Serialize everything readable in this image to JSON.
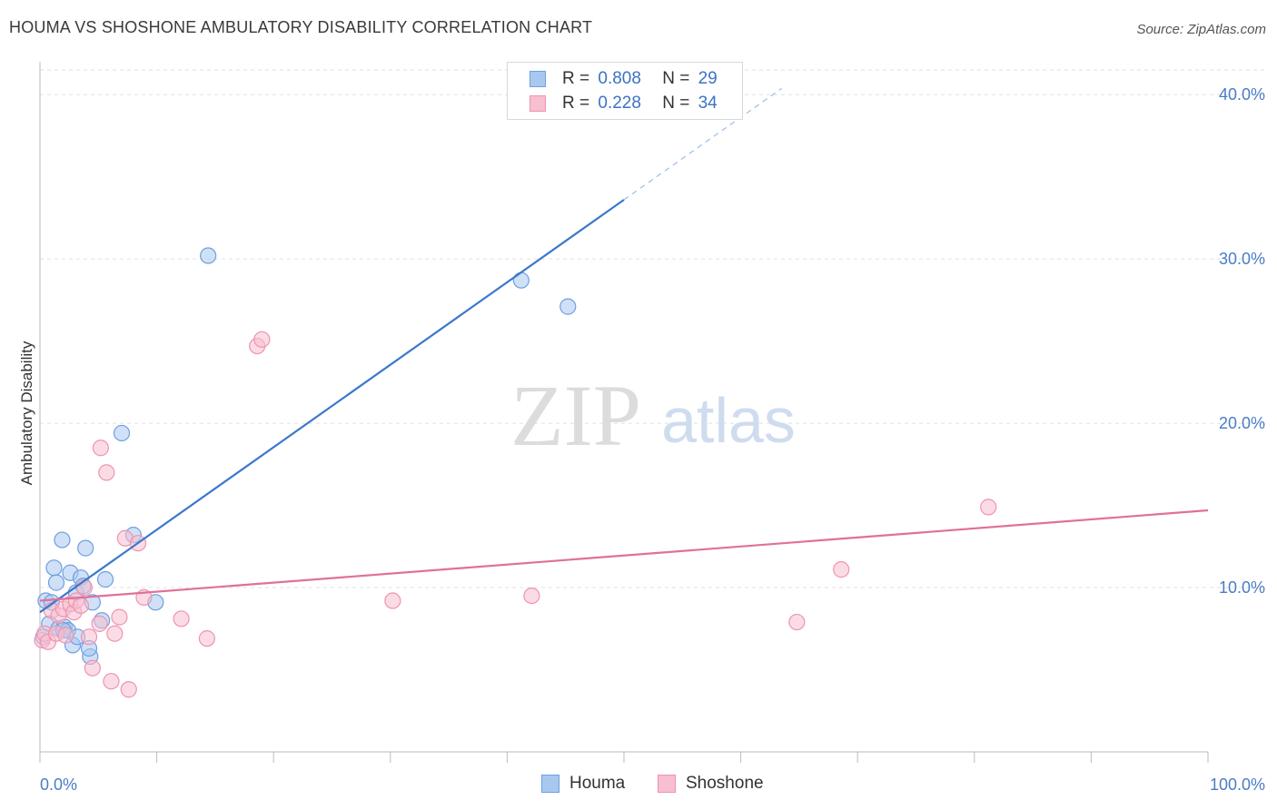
{
  "title": "HOUMA VS SHOSHONE AMBULATORY DISABILITY CORRELATION CHART",
  "source": "Source: ZipAtlas.com",
  "watermark": {
    "zip": "ZIP",
    "atlas": "atlas"
  },
  "colors": {
    "houma_fill": "#a9c8f0",
    "houma_stroke": "#6d9fe0",
    "houma_line": "#3a78cd",
    "shoshone_fill": "#f7bfd0",
    "shoshone_stroke": "#ee93b1",
    "shoshone_line": "#e0709a",
    "tick_label": "#4a7cc5",
    "grid": "#e2e2e2"
  },
  "legend_top": {
    "rows": [
      {
        "r_label": "R =",
        "r_value": "0.808",
        "n_label": "N =",
        "n_value": "29"
      },
      {
        "r_label": "R =",
        "r_value": "0.228",
        "n_label": "N =",
        "n_value": "34"
      }
    ]
  },
  "legend_bottom": [
    "Houma",
    "Shoshone"
  ],
  "chart_data": {
    "type": "scatter",
    "title": "HOUMA VS SHOSHONE AMBULATORY DISABILITY CORRELATION CHART",
    "xlabel": "",
    "ylabel": "Ambulatory Disability",
    "xlim": [
      0,
      100
    ],
    "ylim": [
      0,
      42
    ],
    "x_tick_labels": [
      "0.0%",
      "100.0%"
    ],
    "y_ticks": [
      10,
      20,
      30,
      40
    ],
    "y_tick_labels": [
      "10.0%",
      "20.0%",
      "30.0%",
      "40.0%"
    ],
    "grid": true,
    "legend_placement": "top-center",
    "series": [
      {
        "name": "Houma",
        "r": 0.808,
        "n": 29,
        "points": [
          [
            0.3,
            7.0
          ],
          [
            0.5,
            9.2
          ],
          [
            0.8,
            7.8
          ],
          [
            1.0,
            9.1
          ],
          [
            1.2,
            11.2
          ],
          [
            1.4,
            10.3
          ],
          [
            1.6,
            7.5
          ],
          [
            1.9,
            12.9
          ],
          [
            2.1,
            7.6
          ],
          [
            2.4,
            7.4
          ],
          [
            2.6,
            10.9
          ],
          [
            2.8,
            6.5
          ],
          [
            3.1,
            9.7
          ],
          [
            3.2,
            7.0
          ],
          [
            3.5,
            10.6
          ],
          [
            3.7,
            10.1
          ],
          [
            3.9,
            12.4
          ],
          [
            4.3,
            5.8
          ],
          [
            4.5,
            9.1
          ],
          [
            5.3,
            8.0
          ],
          [
            5.6,
            10.5
          ],
          [
            8.0,
            13.2
          ],
          [
            9.9,
            9.1
          ],
          [
            14.4,
            30.2
          ],
          [
            7.0,
            19.4
          ],
          [
            2.0,
            7.4
          ],
          [
            4.2,
            6.3
          ],
          [
            41.2,
            28.7
          ],
          [
            45.2,
            27.1
          ]
        ],
        "trend": {
          "x0": 0,
          "y0": 8.5,
          "x1": 50,
          "y1": 33.6,
          "dash_to_x": 63.5
        }
      },
      {
        "name": "Shoshone",
        "r": 0.228,
        "n": 34,
        "points": [
          [
            0.2,
            6.8
          ],
          [
            0.4,
            7.2
          ],
          [
            0.7,
            6.7
          ],
          [
            1.0,
            8.6
          ],
          [
            1.4,
            7.2
          ],
          [
            1.6,
            8.3
          ],
          [
            2.0,
            8.7
          ],
          [
            2.2,
            7.1
          ],
          [
            2.6,
            9.0
          ],
          [
            2.9,
            8.5
          ],
          [
            3.1,
            9.2
          ],
          [
            3.5,
            8.9
          ],
          [
            3.8,
            10.0
          ],
          [
            4.2,
            7.0
          ],
          [
            4.5,
            5.1
          ],
          [
            5.1,
            7.8
          ],
          [
            5.7,
            17.0
          ],
          [
            6.1,
            4.3
          ],
          [
            6.4,
            7.2
          ],
          [
            6.8,
            8.2
          ],
          [
            7.3,
            13.0
          ],
          [
            7.6,
            3.8
          ],
          [
            8.4,
            12.7
          ],
          [
            8.9,
            9.4
          ],
          [
            12.1,
            8.1
          ],
          [
            14.3,
            6.9
          ],
          [
            18.6,
            24.7
          ],
          [
            19.0,
            25.1
          ],
          [
            30.2,
            9.2
          ],
          [
            5.2,
            18.5
          ],
          [
            42.1,
            9.5
          ],
          [
            64.8,
            7.9
          ],
          [
            68.6,
            11.1
          ],
          [
            81.2,
            14.9
          ]
        ],
        "trend": {
          "x0": 0,
          "y0": 9.2,
          "x1": 100,
          "y1": 14.7
        }
      }
    ]
  }
}
